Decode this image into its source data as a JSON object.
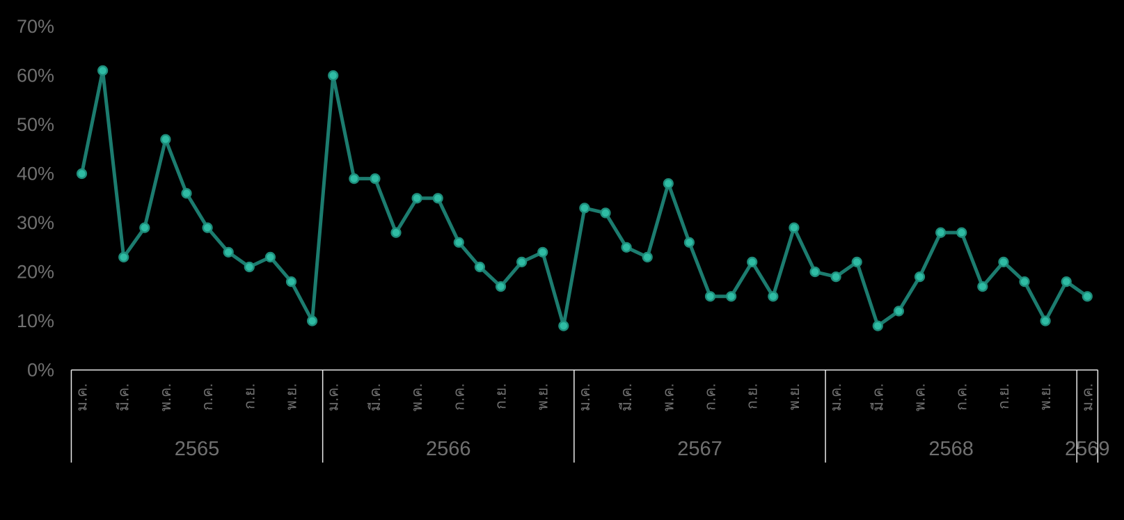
{
  "chart_data": {
    "type": "line",
    "title": "",
    "unit": "%",
    "ylim": [
      0,
      70
    ],
    "y_tick_labels": [
      "0%",
      "10%",
      "20%",
      "30%",
      "40%",
      "50%",
      "60%",
      "70%"
    ],
    "grid": false,
    "legend": false,
    "x_axis": {
      "month_tick_labels": [
        "ม.ค.",
        "มี.ค.",
        "พ.ค.",
        "ก.ค.",
        "ก.ย.",
        "พ.ย."
      ],
      "months_per_tick": 2
    },
    "years": [
      {
        "label": "2565",
        "values": [
          40,
          61,
          23,
          29,
          47,
          36,
          29,
          24,
          21,
          23,
          18,
          10
        ]
      },
      {
        "label": "2566",
        "values": [
          60,
          39,
          39,
          28,
          35,
          35,
          26,
          21,
          17,
          22,
          24,
          9
        ]
      },
      {
        "label": "2567",
        "values": [
          33,
          32,
          25,
          23,
          38,
          26,
          15,
          15,
          22,
          15,
          29,
          20
        ]
      },
      {
        "label": "2568",
        "values": [
          19,
          22,
          9,
          12,
          19,
          28,
          28,
          17,
          22,
          18,
          10,
          18
        ]
      },
      {
        "label": "2569",
        "values": [
          15
        ]
      }
    ],
    "colors": {
      "background": "#000000",
      "line": "#1C7C6F",
      "marker_fill": "#2FBCA4",
      "marker_stroke": "#1E8E7C",
      "axis_text": "#707070",
      "axis_line": "#EBEBEB"
    }
  }
}
